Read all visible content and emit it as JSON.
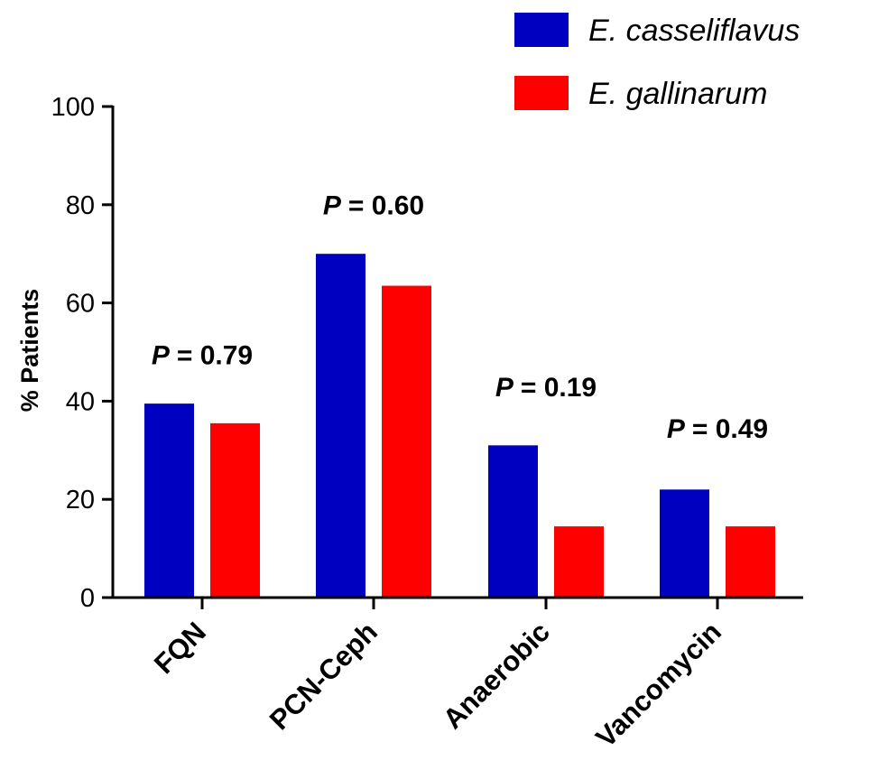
{
  "chart_data": {
    "type": "bar",
    "categories": [
      "FQN",
      "PCN-Ceph",
      "Anaerobic",
      "Vancomycin"
    ],
    "series": [
      {
        "name": "E. casseliflavus",
        "values": [
          39.5,
          70,
          31,
          22
        ],
        "color": "#0000c0"
      },
      {
        "name": "E. gallinarum",
        "values": [
          35.5,
          63.5,
          14.5,
          14.5
        ],
        "color": "#ff0000"
      }
    ],
    "ylabel": "% Patients",
    "ylim": [
      0,
      100
    ],
    "yticks": [
      "0",
      "20",
      "40",
      "60",
      "80",
      "100"
    ],
    "legend_position": "top-right",
    "grid": false,
    "annotations": [
      {
        "category": "FQN",
        "p_symbol": "P",
        "value_text": "= 0.79",
        "anchor_value": 47.5
      },
      {
        "category": "PCN-Ceph",
        "p_symbol": "P",
        "value_text": "= 0.60",
        "anchor_value": 78
      },
      {
        "category": "Anaerobic",
        "p_symbol": "P",
        "value_text": "= 0.19",
        "anchor_value": 41
      },
      {
        "category": "Vancomycin",
        "p_symbol": "P",
        "value_text": "= 0.49",
        "anchor_value": 32.5
      }
    ]
  }
}
